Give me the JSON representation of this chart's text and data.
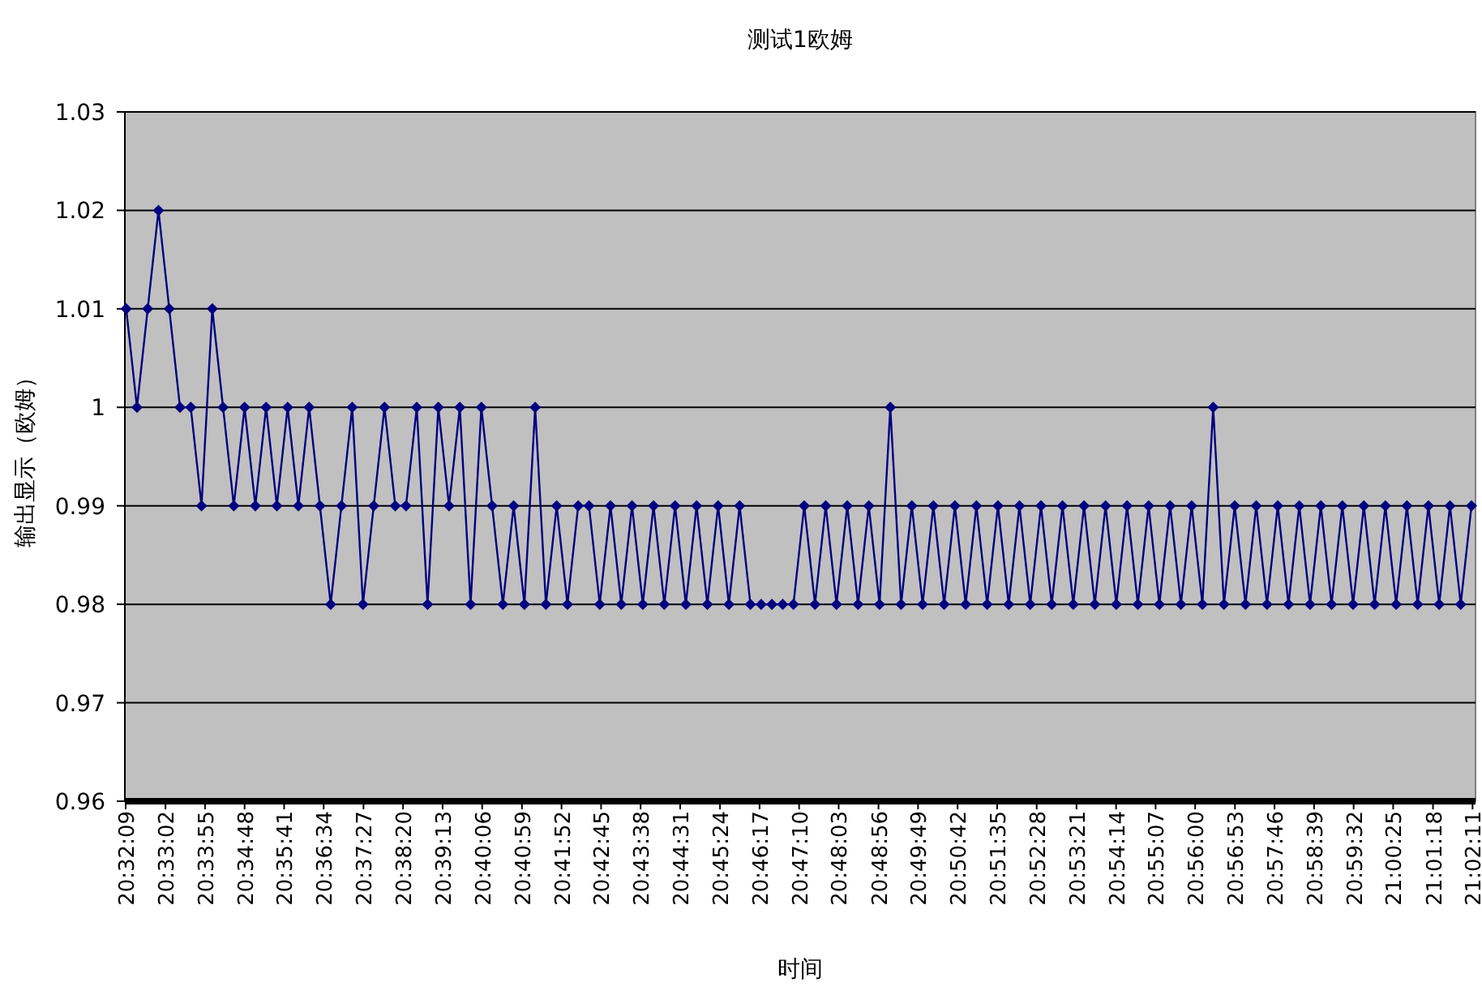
{
  "chart_data": {
    "type": "line",
    "title": "测试1欧姆",
    "xlabel": "时间",
    "ylabel": "输出显示（欧姆）",
    "grid": "y",
    "marker": "diamond",
    "line_style": "solid",
    "ylim": [
      0.96,
      1.03
    ],
    "yticks": [
      0.96,
      0.97,
      0.98,
      0.99,
      1,
      1.01,
      1.02,
      1.03
    ],
    "xlim": [
      20.5355,
      21.0375
    ],
    "xticks": [
      {
        "value": 20.5358,
        "label": "20:32:09"
      },
      {
        "value": 20.5506,
        "label": "20:33:02"
      },
      {
        "value": 20.5653,
        "label": "20:33:55"
      },
      {
        "value": 20.58,
        "label": "20:34:48"
      },
      {
        "value": 20.5947,
        "label": "20:35:41"
      },
      {
        "value": 20.6094,
        "label": "20:36:34"
      },
      {
        "value": 20.6242,
        "label": "20:37:27"
      },
      {
        "value": 20.6389,
        "label": "20:38:20"
      },
      {
        "value": 20.6536,
        "label": "20:39:13"
      },
      {
        "value": 20.6683,
        "label": "20:40:06"
      },
      {
        "value": 20.6831,
        "label": "20:40:59"
      },
      {
        "value": 20.6978,
        "label": "20:41:52"
      },
      {
        "value": 20.7125,
        "label": "20:42:45"
      },
      {
        "value": 20.7272,
        "label": "20:43:38"
      },
      {
        "value": 20.7419,
        "label": "20:44:31"
      },
      {
        "value": 20.7567,
        "label": "20:45:24"
      },
      {
        "value": 20.7714,
        "label": "20:46:17"
      },
      {
        "value": 20.7861,
        "label": "20:47:10"
      },
      {
        "value": 20.8008,
        "label": "20:48:03"
      },
      {
        "value": 20.8156,
        "label": "20:48:56"
      },
      {
        "value": 20.8303,
        "label": "20:49:49"
      },
      {
        "value": 20.845,
        "label": "20:50:42"
      },
      {
        "value": 20.8597,
        "label": "20:51:35"
      },
      {
        "value": 20.8744,
        "label": "20:52:28"
      },
      {
        "value": 20.8892,
        "label": "20:53:21"
      },
      {
        "value": 20.9039,
        "label": "20:54:14"
      },
      {
        "value": 20.9186,
        "label": "20:55:07"
      },
      {
        "value": 20.9333,
        "label": "20:56:00"
      },
      {
        "value": 20.9481,
        "label": "20:56:53"
      },
      {
        "value": 20.9628,
        "label": "20:57:46"
      },
      {
        "value": 20.9775,
        "label": "20:58:39"
      },
      {
        "value": 20.9922,
        "label": "20:59:32"
      },
      {
        "value": 21.0069,
        "label": "21:00:25"
      },
      {
        "value": 21.0217,
        "label": "21:01:18"
      },
      {
        "value": 21.0364,
        "label": "21:02:11"
      }
    ],
    "series": [
      {
        "color": "#000080",
        "x": [
          20.536,
          20.54,
          20.544,
          20.548,
          20.552,
          20.556,
          20.56,
          20.564,
          20.568,
          20.572,
          20.576,
          20.58,
          20.584,
          20.588,
          20.592,
          20.596,
          20.6,
          20.604,
          20.608,
          20.612,
          20.616,
          20.62,
          20.624,
          20.628,
          20.632,
          20.636,
          20.64,
          20.644,
          20.648,
          20.652,
          20.656,
          20.66,
          20.664,
          20.668,
          20.672,
          20.676,
          20.68,
          20.684,
          20.688,
          20.692,
          20.696,
          20.7,
          20.704,
          20.708,
          20.712,
          20.716,
          20.72,
          20.724,
          20.728,
          20.732,
          20.736,
          20.74,
          20.744,
          20.748,
          20.752,
          20.756,
          20.76,
          20.764,
          20.768,
          20.772,
          20.776,
          20.78,
          20.784,
          20.788,
          20.792,
          20.796,
          20.8,
          20.804,
          20.808,
          20.812,
          20.816,
          20.82,
          20.824,
          20.828,
          20.832,
          20.836,
          20.84,
          20.844,
          20.848,
          20.852,
          20.856,
          20.86,
          20.864,
          20.868,
          20.872,
          20.876,
          20.88,
          20.884,
          20.888,
          20.892,
          20.896,
          20.9,
          20.904,
          20.908,
          20.912,
          20.916,
          20.92,
          20.924,
          20.928,
          20.932,
          20.936,
          20.94,
          20.944,
          20.948,
          20.952,
          20.956,
          20.96,
          20.964,
          20.968,
          20.972,
          20.976,
          20.98,
          20.984,
          20.988,
          20.992,
          20.996,
          21.0,
          21.004,
          21.008,
          21.012,
          21.016,
          21.02,
          21.024,
          21.028,
          21.032,
          21.036
        ],
        "values": [
          1.01,
          1.0,
          1.01,
          1.02,
          1.01,
          1.0,
          1.0,
          0.99,
          1.01,
          1.0,
          0.99,
          1.0,
          0.99,
          1.0,
          0.99,
          1.0,
          0.99,
          1.0,
          0.99,
          0.98,
          0.99,
          1.0,
          0.98,
          0.99,
          1.0,
          0.99,
          0.99,
          1.0,
          0.98,
          1.0,
          0.99,
          1.0,
          0.98,
          1.0,
          0.99,
          0.98,
          0.99,
          0.98,
          1.0,
          0.98,
          0.99,
          0.98,
          0.99,
          0.99,
          0.98,
          0.99,
          0.98,
          0.99,
          0.98,
          0.99,
          0.98,
          0.99,
          0.98,
          0.99,
          0.98,
          0.99,
          0.98,
          0.99,
          0.98,
          0.98,
          0.98,
          0.98,
          0.98,
          0.99,
          0.98,
          0.99,
          0.98,
          0.99,
          0.98,
          0.99,
          0.98,
          1.0,
          0.98,
          0.99,
          0.98,
          0.99,
          0.98,
          0.99,
          0.98,
          0.99,
          0.98,
          0.99,
          0.98,
          0.99,
          0.98,
          0.99,
          0.98,
          0.99,
          0.98,
          0.99,
          0.98,
          0.99,
          0.98,
          0.99,
          0.98,
          0.99,
          0.98,
          0.99,
          0.98,
          0.99,
          0.98,
          1.0,
          0.98,
          0.99,
          0.98,
          0.99,
          0.98,
          0.99,
          0.98,
          0.99,
          0.98,
          0.99,
          0.98,
          0.99,
          0.98,
          0.99,
          0.98,
          0.99,
          0.98,
          0.99,
          0.98,
          0.99,
          0.98,
          0.99,
          0.98,
          0.99
        ]
      }
    ]
  }
}
